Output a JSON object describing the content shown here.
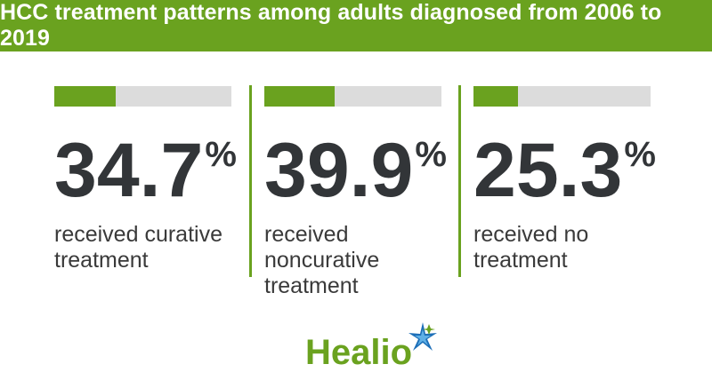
{
  "header": {
    "title": "HCC treatment patterns among adults diagnosed from 2006 to 2019"
  },
  "stats": [
    {
      "value": "34.7",
      "unit": "%",
      "fraction": 0.347,
      "desc_lines": [
        "received curative",
        "treatment"
      ]
    },
    {
      "value": "39.9",
      "unit": "%",
      "fraction": 0.399,
      "desc_lines": [
        "received",
        "noncurative",
        "treatment"
      ]
    },
    {
      "value": "25.3",
      "unit": "%",
      "fraction": 0.253,
      "desc_lines": [
        "received no",
        "treatment"
      ]
    }
  ],
  "colors": {
    "accent": "#6aa21f",
    "bar_track": "#dcdcdc",
    "text_dark": "#323538",
    "logo_star_blue": "#1d6fb8"
  },
  "logo": {
    "text": "Healio",
    "icon": "healio-star-icon"
  }
}
